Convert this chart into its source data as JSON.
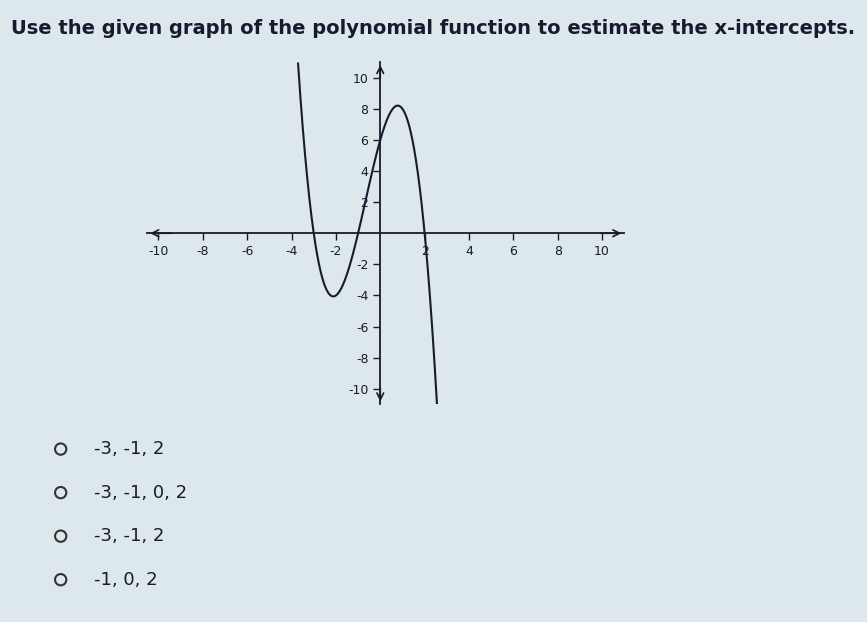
{
  "title": "Use the given graph of the polynomial function to estimate the x-intercepts.",
  "title_fontsize": 14,
  "title_fontweight": "bold",
  "xlim": [
    -10.5,
    11
  ],
  "ylim": [
    -11,
    11
  ],
  "xticks": [
    -10,
    -8,
    -6,
    -4,
    -2,
    2,
    4,
    6,
    8,
    10
  ],
  "yticks": [
    -10,
    -8,
    -6,
    -4,
    -2,
    2,
    4,
    6,
    8,
    10
  ],
  "background_color": "#dce8ec",
  "curve_color": "#1a1a2e",
  "axes_color": "#1a1a2e",
  "choices": [
    "-3, -1, 2",
    "-3, -1, 0, 2",
    "-3, -1, 2",
    "-1, 0, 2"
  ],
  "choice_fontsize": 13,
  "poly_scale": -1.0,
  "poly_roots": [
    -3,
    -1,
    2
  ]
}
